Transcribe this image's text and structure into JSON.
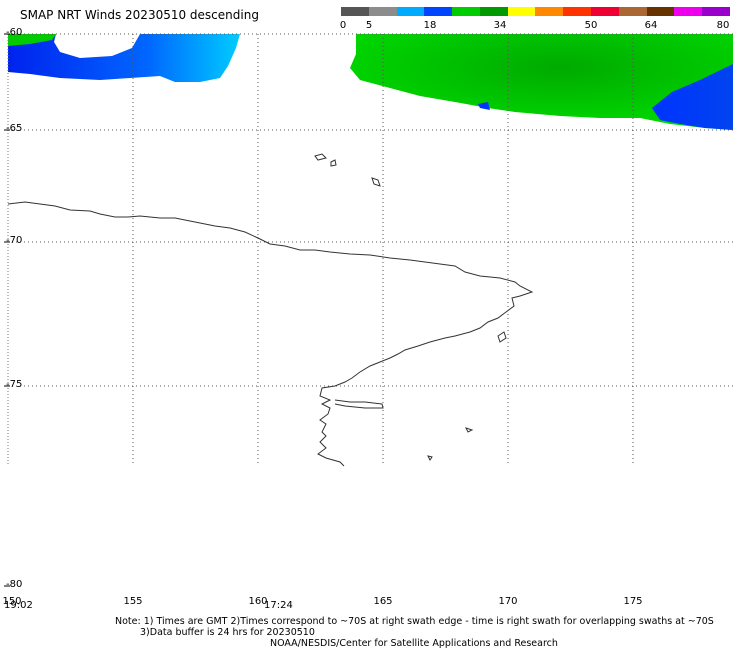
{
  "title": "SMAP NRT Winds  20230510 descending",
  "color_scale": {
    "ticks": [
      "0",
      "5",
      "18",
      "34",
      "50",
      "64",
      "80"
    ],
    "colors": [
      "#555555",
      "#8c8c8c",
      "#00aaff",
      "#0044ff",
      "#00cc00",
      "#009900",
      "#ffff00",
      "#ff8800",
      "#ff3300",
      "#ee0033",
      "#aa6633",
      "#663300",
      "#ee00ee",
      "#9900cc"
    ]
  },
  "axes": {
    "lat_labels": [
      "-60",
      "-65",
      "-70",
      "-75",
      "-80"
    ],
    "lon_labels": [
      "150",
      "155",
      "160",
      "165",
      "170",
      "175"
    ]
  },
  "swath_times": [
    "19:02",
    "17:24"
  ],
  "footer": {
    "note_line1": "Note: 1) Times are GMT 2)Times correspond to ~70S at right swath edge - time is right swath for overlapping swaths at ~70S",
    "note_line2": "3)Data buffer is 24 hrs for 20230510",
    "credit": "NOAA/NESDIS/Center for Satellite Applications and Research"
  }
}
